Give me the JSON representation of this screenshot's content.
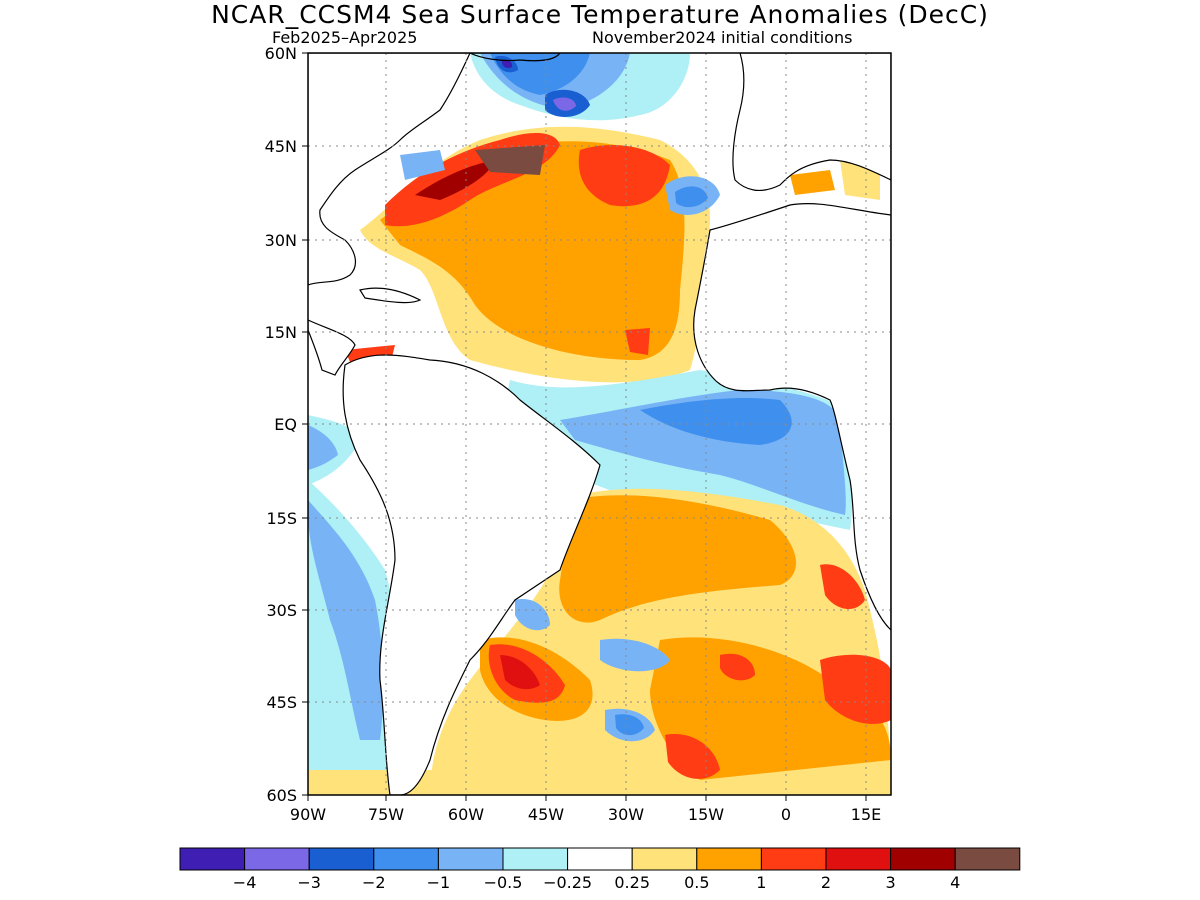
{
  "title": "NCAR_CCSM4 Sea Surface Temperature Anomalies (DecC)",
  "season": "Feb2025–Apr2025",
  "init": "November2024 initial conditions",
  "lat_labels": [
    "60N",
    "45N",
    "30N",
    "15N",
    "EQ",
    "15S",
    "30S",
    "45S",
    "60S"
  ],
  "lon_labels": [
    "90W",
    "75W",
    "60W",
    "45W",
    "30W",
    "15W",
    "0",
    "15E"
  ],
  "legend": {
    "colors": [
      "#3f1fb3",
      "#7b68e6",
      "#1a5fd1",
      "#3f8fef",
      "#78b4f5",
      "#aef0f5",
      "#ffffff",
      "#ffe27a",
      "#ffa200",
      "#ff3c14",
      "#e01010",
      "#a00000",
      "#7a4b40"
    ],
    "labels": [
      "−4",
      "−3",
      "−2",
      "−1",
      "−0.5",
      "−0.25",
      "0.25",
      "0.5",
      "1",
      "2",
      "3",
      "4"
    ]
  }
}
